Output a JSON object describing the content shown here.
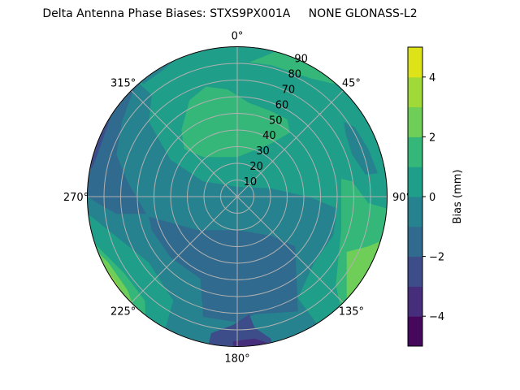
{
  "chart_data": {
    "type": "polar-contour",
    "title": "Delta Antenna Phase Biases: STXS9PX001A     NONE GLONASS-L2",
    "angular_ticks": [
      "0°",
      "45°",
      "90°",
      "135°",
      "180°",
      "225°",
      "270°",
      "315°"
    ],
    "radial_ticks": [
      "10",
      "20",
      "30",
      "40",
      "50",
      "60",
      "70",
      "80",
      "90"
    ],
    "radial_range": [
      0,
      90
    ],
    "grid": true,
    "colorbar": {
      "label": "Bias (mm)",
      "range": [
        -5,
        5
      ],
      "levels": [
        -5,
        -4,
        -3,
        -2,
        -1,
        0,
        1,
        2,
        3,
        4,
        5
      ],
      "ticks": [
        "−4",
        "−2",
        "0",
        "2",
        "4"
      ],
      "tick_values": [
        -4,
        -2,
        0,
        2,
        4
      ],
      "colors": [
        "#46085c",
        "#472e7c",
        "#3d4d8a",
        "#306a8e",
        "#26828e",
        "#1f9e89",
        "#35b779",
        "#6ece58",
        "#a0da39",
        "#dde318"
      ]
    }
  }
}
